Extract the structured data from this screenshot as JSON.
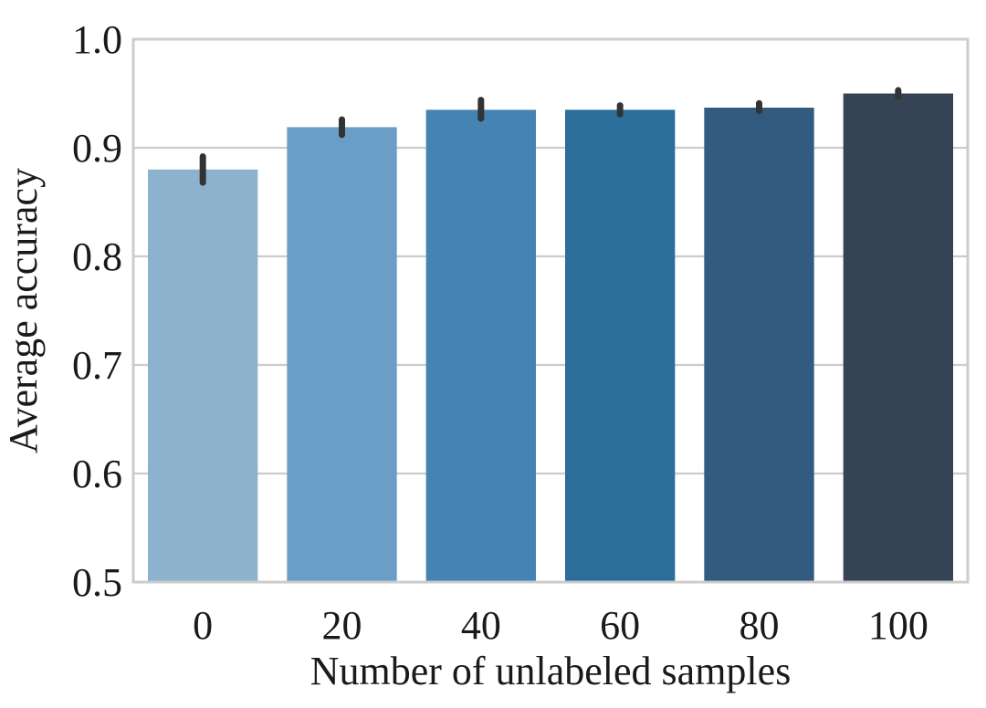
{
  "chart_data": {
    "type": "bar",
    "title": "",
    "xlabel": "Number of unlabeled samples",
    "ylabel": "Average accuracy",
    "categories": [
      "0",
      "20",
      "40",
      "60",
      "80",
      "100"
    ],
    "values": [
      0.88,
      0.919,
      0.935,
      0.935,
      0.937,
      0.95
    ],
    "error_low": [
      0.868,
      0.912,
      0.927,
      0.931,
      0.934,
      0.947
    ],
    "error_high": [
      0.892,
      0.926,
      0.944,
      0.939,
      0.941,
      0.953
    ],
    "ylim": [
      0.5,
      1.0
    ],
    "yticks": [
      "0.5",
      "0.6",
      "0.7",
      "0.8",
      "0.9",
      "1.0"
    ],
    "grid": "horizontal",
    "colors": [
      "#8db2ce",
      "#6a9ec6",
      "#4483b3",
      "#2b6e9b",
      "#335a7f",
      "#364355"
    ],
    "errorbar_color": "#333333",
    "grid_color": "#cccccc",
    "spine_color": "#cccccc"
  }
}
